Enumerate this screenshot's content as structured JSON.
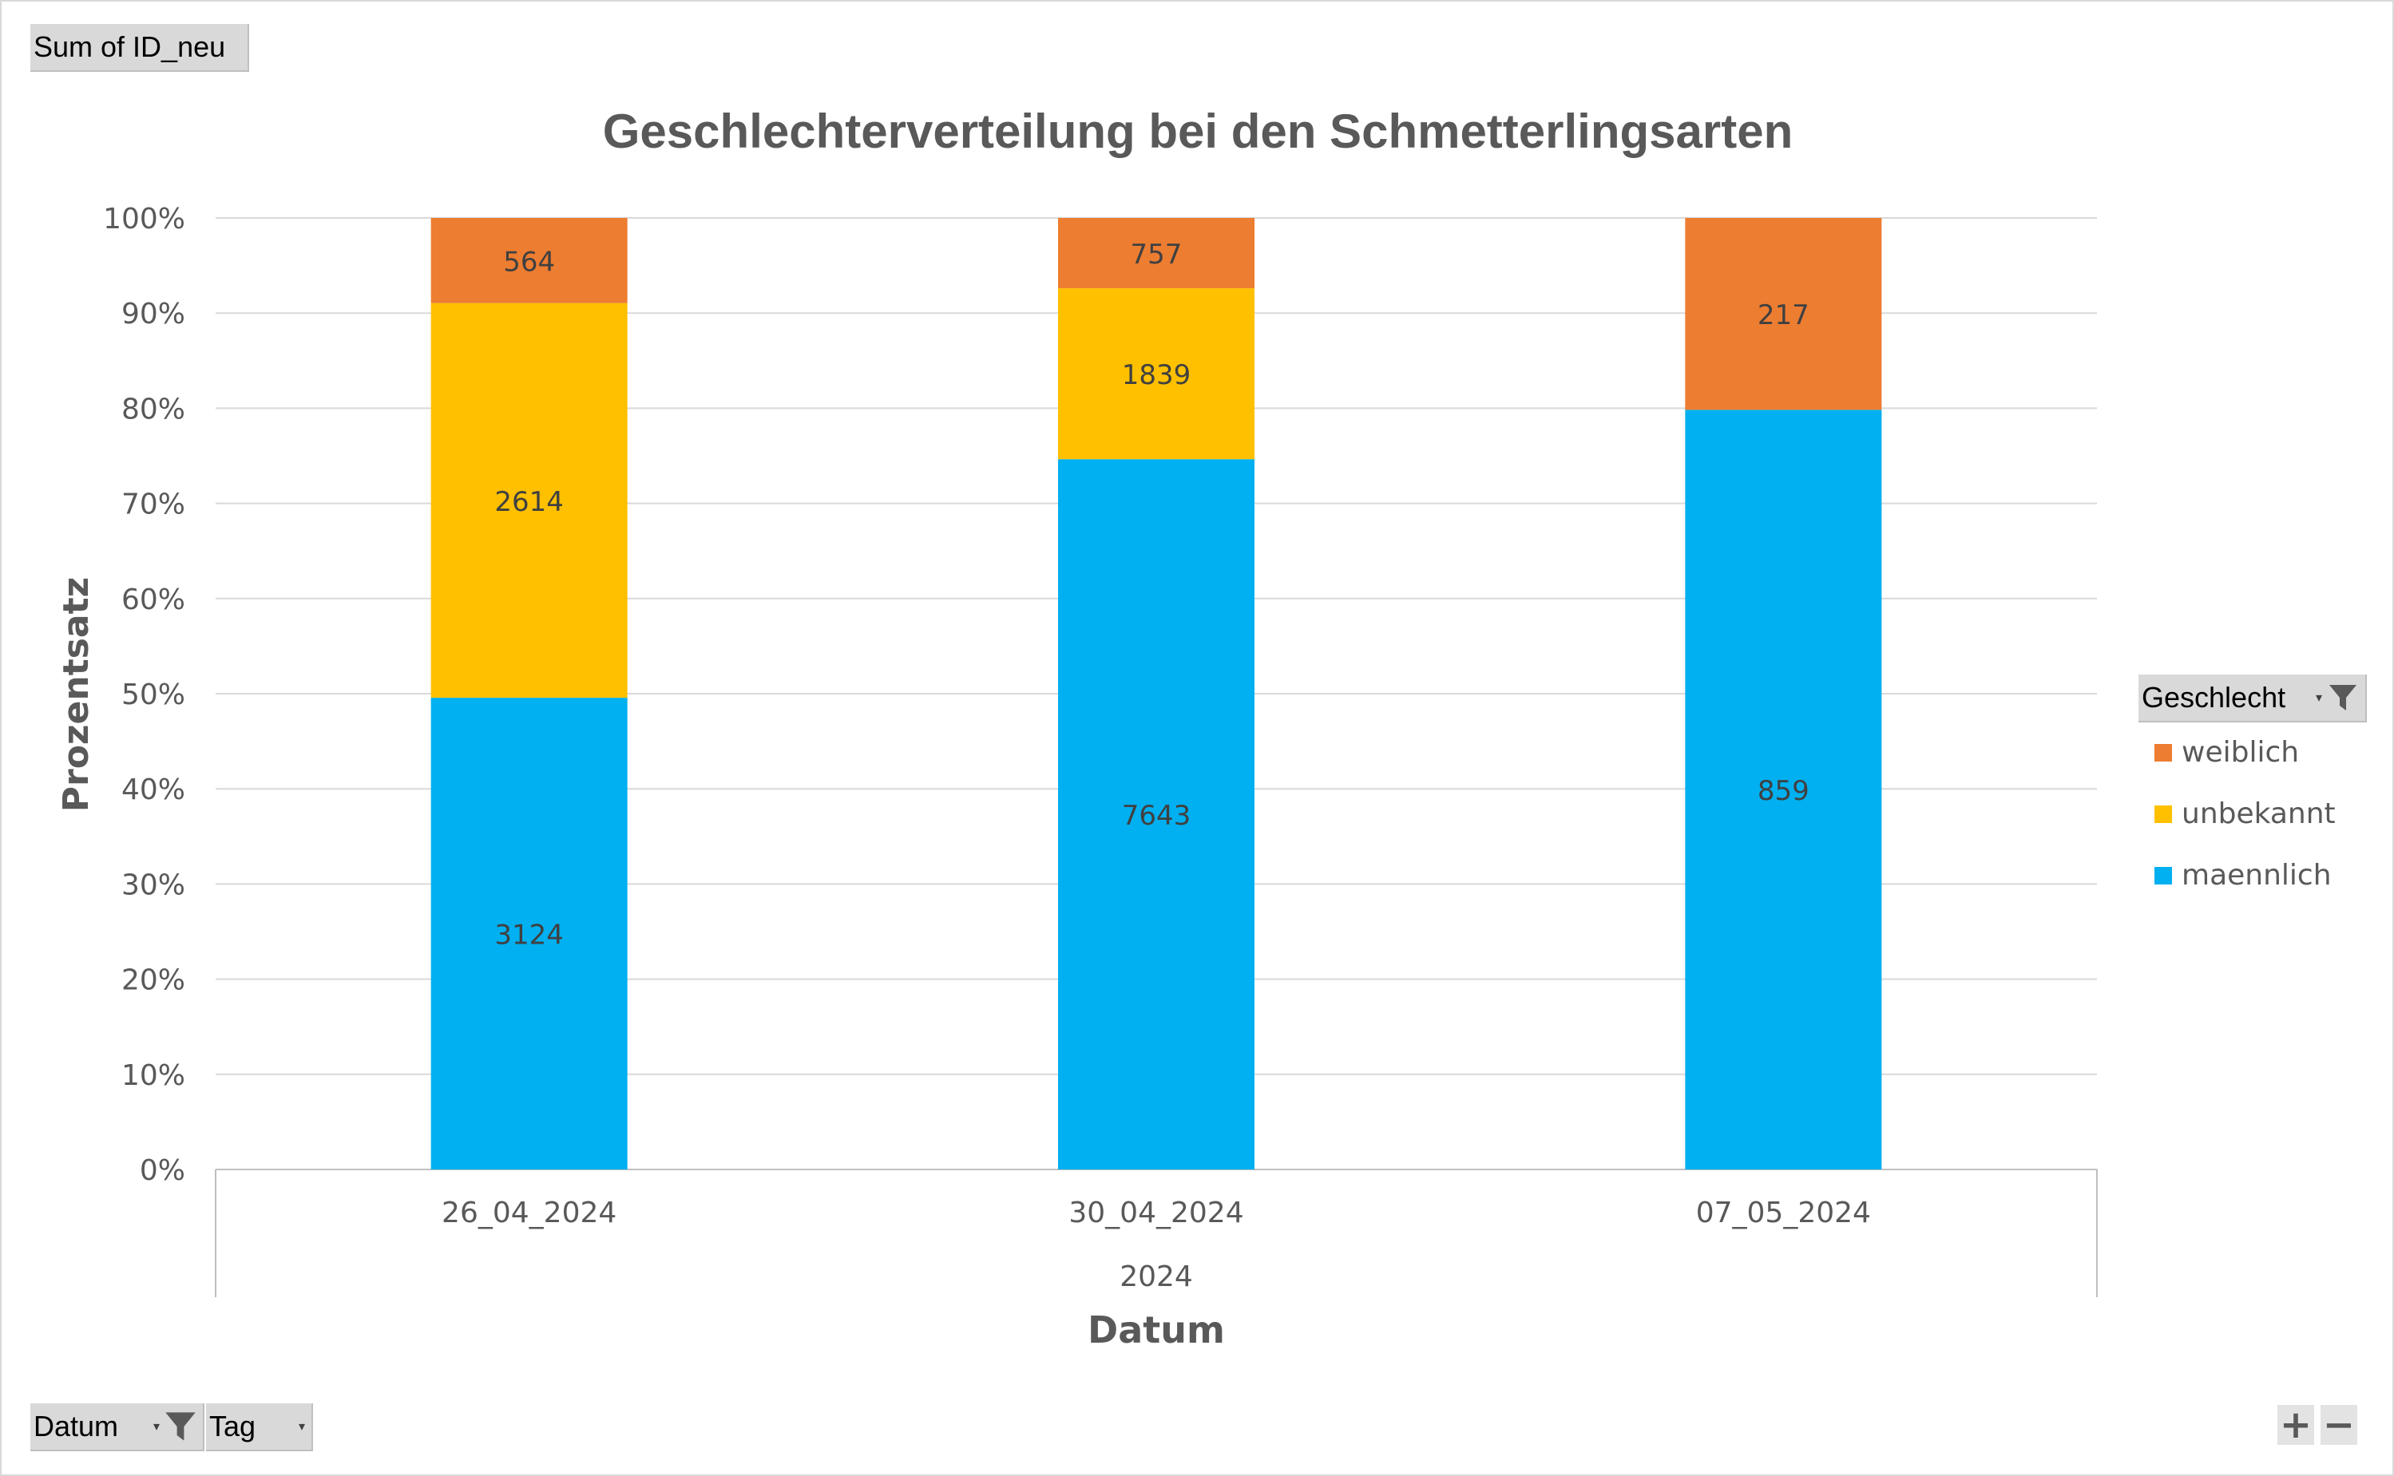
{
  "field_buttons": {
    "value_field": "Sum of ID_neu",
    "legend_field": "Geschlecht",
    "axis_field_1": "Datum",
    "axis_field_2": "Tag"
  },
  "icons": {
    "filter": "funnel-filter-icon",
    "dropdown": "dropdown-arrow-icon",
    "zoom_in": "plus-icon",
    "zoom_out": "minus-icon"
  },
  "zoom": {
    "plus": "+",
    "minus": "−"
  },
  "chart_data": {
    "type": "bar",
    "stacked": "100%",
    "title": "Geschlechterverteilung bei den Schmetterlingsarten",
    "xlabel": "Datum",
    "ylabel": "Prozentsatz",
    "categories": [
      "26_04_2024",
      "30_04_2024",
      "07_05_2024"
    ],
    "category_group": "2024",
    "y_ticks": [
      "0%",
      "10%",
      "20%",
      "30%",
      "40%",
      "50%",
      "60%",
      "70%",
      "80%",
      "90%",
      "100%"
    ],
    "ylim": [
      0,
      1
    ],
    "grid": true,
    "legend_position": "right",
    "series": [
      {
        "name": "maennlich",
        "color": "#00B0F0",
        "values": [
          3124,
          7643,
          859
        ]
      },
      {
        "name": "unbekannt",
        "color": "#FFC000",
        "values": [
          2614,
          1839,
          null
        ]
      },
      {
        "name": "weiblich",
        "color": "#ED7D31",
        "values": [
          564,
          757,
          217
        ]
      }
    ],
    "legend_order": [
      "weiblich",
      "unbekannt",
      "maennlich"
    ]
  }
}
